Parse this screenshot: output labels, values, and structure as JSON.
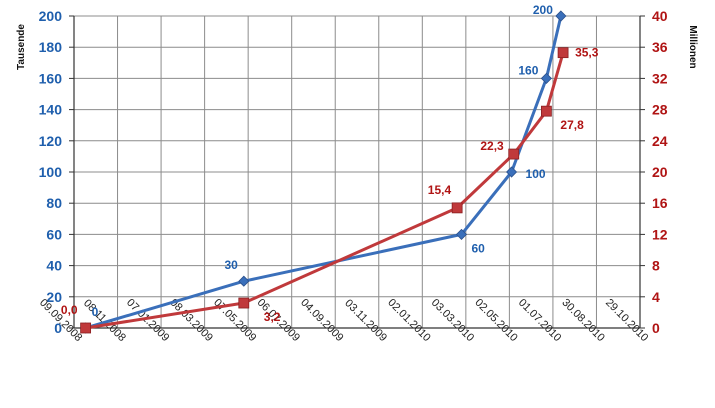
{
  "chart_data": {
    "type": "line",
    "grid": true,
    "y_left": {
      "label": "Tausende",
      "lim": [
        0,
        200
      ],
      "ticks": [
        "0",
        "20",
        "40",
        "60",
        "80",
        "100",
        "120",
        "140",
        "160",
        "180",
        "200"
      ]
    },
    "y_right": {
      "label": "Millionen",
      "lim": [
        0,
        40
      ],
      "ticks": [
        "0",
        "4",
        "8",
        "12",
        "16",
        "20",
        "24",
        "28",
        "32",
        "36",
        "40"
      ]
    },
    "x_ticks": [
      "09.09.2008",
      "08.11.2008",
      "07.01.2009",
      "08.03.2009",
      "07.05.2009",
      "06.07.2009",
      "04.09.2009",
      "03.11.2009",
      "02.01.2010",
      "03.03.2010",
      "02.05.2010",
      "01.07.2010",
      "30.08.2010",
      "29.10.2010"
    ],
    "x_lim": [
      "09.09.2008",
      "29.10.2010"
    ],
    "series": [
      {
        "axis": "left",
        "color": "#3a6fba",
        "marker": "diamond",
        "points": [
          {
            "x": "2008-09-25",
            "y": 0,
            "label": "0"
          },
          {
            "x": "2009-05-01",
            "y": 30,
            "label": "30"
          },
          {
            "x": "2010-02-25",
            "y": 60,
            "label": "60"
          },
          {
            "x": "2010-05-05",
            "y": 100,
            "label": "100"
          },
          {
            "x": "2010-06-22",
            "y": 160,
            "label": "160"
          },
          {
            "x": "2010-07-12",
            "y": 200,
            "label": "200"
          }
        ]
      },
      {
        "axis": "right",
        "color": "#c0393b",
        "marker": "square",
        "points": [
          {
            "x": "2008-09-25",
            "y": 0.0,
            "label": "0,0"
          },
          {
            "x": "2009-05-01",
            "y": 3.2,
            "label": "3,2"
          },
          {
            "x": "2010-02-19",
            "y": 15.4,
            "label": "15,4"
          },
          {
            "x": "2010-05-08",
            "y": 22.3,
            "label": "22,3"
          },
          {
            "x": "2010-06-22",
            "y": 27.8,
            "label": "27,8"
          },
          {
            "x": "2010-07-15",
            "y": 35.3,
            "label": "35,3"
          }
        ]
      }
    ]
  }
}
